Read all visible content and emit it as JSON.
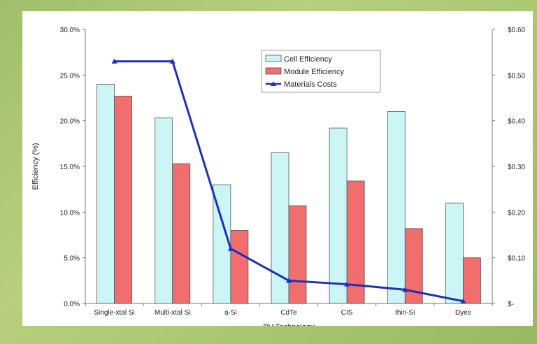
{
  "chart_data": {
    "type": "bar",
    "categories": [
      "Single-xtal Si",
      "Multi-xtal Si",
      "a-Si",
      "CdTe",
      "CIS",
      "thin-Si",
      "Dyes"
    ],
    "series": [
      {
        "name": "Cell Efficiency",
        "type": "bar",
        "axis": "left",
        "color": "#ccf5f5",
        "values": [
          24.0,
          20.3,
          13.0,
          16.5,
          19.2,
          21.0,
          11.0
        ]
      },
      {
        "name": "Module Efficiency",
        "type": "bar",
        "axis": "left",
        "color": "#f26d6d",
        "values": [
          22.7,
          15.3,
          8.0,
          10.7,
          13.4,
          8.2,
          5.0
        ]
      },
      {
        "name": "Materials Costs",
        "type": "line",
        "axis": "right",
        "color": "#1f2fb8",
        "values": [
          0.53,
          0.53,
          0.12,
          0.05,
          0.042,
          0.03,
          0.005
        ]
      }
    ],
    "xlabel": "PV Technology",
    "ylabel": "Efficiency (%)",
    "ylim": [
      0,
      30
    ],
    "y_ticks": [
      "0.0%",
      "5.0%",
      "10.0%",
      "15.0%",
      "20.0%",
      "25.0%",
      "30.0%"
    ],
    "y2lim": [
      0,
      0.6
    ],
    "y2_ticks": [
      "$-",
      "$0.10",
      "$0.20",
      "$0.30",
      "$0.40",
      "$0.50",
      "$0.60"
    ],
    "grid": false,
    "legend_position": "top-center"
  }
}
